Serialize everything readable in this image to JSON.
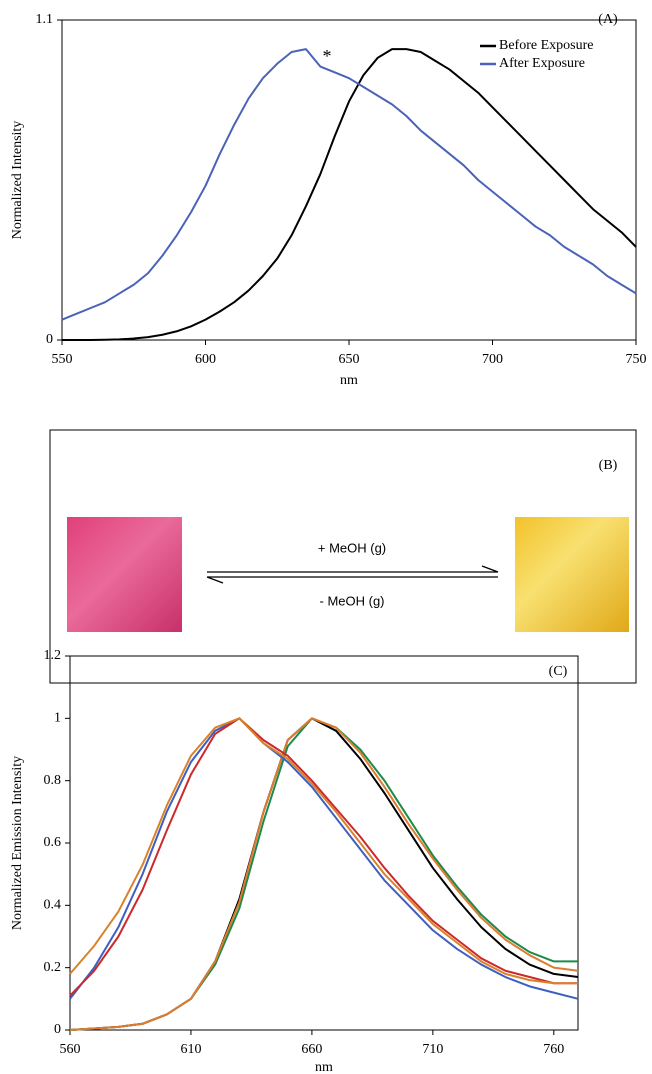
{
  "chart_data": [
    {
      "type": "line",
      "label": "(A)",
      "x_label": "nm",
      "y_label": "Normalized Intensity",
      "annotation": "*",
      "x": [
        550,
        555,
        560,
        565,
        570,
        575,
        580,
        585,
        590,
        595,
        600,
        605,
        610,
        615,
        620,
        625,
        630,
        635,
        640,
        645,
        650,
        655,
        660,
        665,
        670,
        675,
        680,
        685,
        690,
        695,
        700,
        705,
        710,
        715,
        720,
        725,
        730,
        735,
        740,
        745,
        750
      ],
      "xlim": [
        550,
        750
      ],
      "xticks": [
        550,
        600,
        650,
        700,
        750
      ],
      "ylim": [
        0,
        1.1
      ],
      "yticks": [
        0,
        1.1
      ],
      "legend": "upper right",
      "series": [
        {
          "name": "Before Exposure",
          "color": "#000000",
          "values": [
            0,
            0,
            0,
            0.001,
            0.002,
            0.005,
            0.01,
            0.018,
            0.03,
            0.047,
            0.07,
            0.098,
            0.13,
            0.17,
            0.22,
            0.28,
            0.36,
            0.46,
            0.57,
            0.7,
            0.82,
            0.91,
            0.97,
            1.0,
            1.0,
            0.99,
            0.96,
            0.93,
            0.89,
            0.85,
            0.8,
            0.75,
            0.7,
            0.65,
            0.6,
            0.55,
            0.5,
            0.45,
            0.41,
            0.37,
            0.32
          ]
        },
        {
          "name": "After Exposure",
          "color": "#4a63b8",
          "values": [
            0.07,
            0.09,
            0.11,
            0.13,
            0.16,
            0.19,
            0.23,
            0.29,
            0.36,
            0.44,
            0.53,
            0.64,
            0.74,
            0.83,
            0.9,
            0.95,
            0.99,
            1.0,
            0.94,
            0.92,
            0.9,
            0.87,
            0.84,
            0.81,
            0.77,
            0.72,
            0.68,
            0.64,
            0.6,
            0.55,
            0.51,
            0.47,
            0.43,
            0.39,
            0.36,
            0.32,
            0.29,
            0.26,
            0.22,
            0.19,
            0.16
          ]
        }
      ]
    },
    {
      "type": "line",
      "label": "(C)",
      "x_label": "nm",
      "y_label": "Normalized Emission Intensity",
      "x": [
        560,
        570,
        580,
        590,
        600,
        610,
        620,
        630,
        640,
        650,
        660,
        670,
        680,
        690,
        700,
        710,
        720,
        730,
        740,
        750,
        760,
        770
      ],
      "xlim": [
        560,
        770
      ],
      "xticks": [
        560,
        610,
        660,
        710,
        760
      ],
      "ylim": [
        0,
        1.2
      ],
      "yticks": [
        0,
        0.2,
        0.4,
        0.6,
        0.8,
        1,
        1.2
      ],
      "series": [
        {
          "color": "#000000",
          "values": [
            0,
            0.005,
            0.01,
            0.02,
            0.05,
            0.1,
            0.22,
            0.42,
            0.7,
            0.93,
            1.0,
            0.96,
            0.87,
            0.76,
            0.64,
            0.52,
            0.42,
            0.33,
            0.26,
            0.21,
            0.18,
            0.17
          ]
        },
        {
          "color": "#1e8a4a",
          "values": [
            0,
            0.005,
            0.01,
            0.02,
            0.05,
            0.1,
            0.21,
            0.39,
            0.67,
            0.91,
            1.0,
            0.97,
            0.9,
            0.8,
            0.68,
            0.56,
            0.46,
            0.37,
            0.3,
            0.25,
            0.22,
            0.22
          ]
        },
        {
          "color": "#e07a2e",
          "values": [
            0,
            0.005,
            0.01,
            0.02,
            0.05,
            0.1,
            0.22,
            0.41,
            0.7,
            0.93,
            1.0,
            0.97,
            0.89,
            0.78,
            0.66,
            0.55,
            0.45,
            0.36,
            0.29,
            0.24,
            0.2,
            0.19
          ]
        },
        {
          "color": "#3f5fc0",
          "values": [
            0.1,
            0.2,
            0.33,
            0.5,
            0.7,
            0.86,
            0.96,
            1.0,
            0.92,
            0.86,
            0.78,
            0.68,
            0.58,
            0.48,
            0.4,
            0.32,
            0.26,
            0.21,
            0.17,
            0.14,
            0.12,
            0.1
          ]
        },
        {
          "color": "#cc2a2a",
          "values": [
            0.11,
            0.19,
            0.3,
            0.45,
            0.64,
            0.82,
            0.95,
            1.0,
            0.93,
            0.88,
            0.8,
            0.71,
            0.62,
            0.52,
            0.43,
            0.35,
            0.29,
            0.23,
            0.19,
            0.17,
            0.15,
            0.15
          ]
        },
        {
          "color": "#d9822b",
          "values": [
            0.18,
            0.27,
            0.38,
            0.53,
            0.72,
            0.88,
            0.97,
            1.0,
            0.92,
            0.87,
            0.79,
            0.7,
            0.6,
            0.5,
            0.42,
            0.34,
            0.28,
            0.22,
            0.18,
            0.16,
            0.15,
            0.15
          ]
        }
      ]
    }
  ],
  "diagram": {
    "label": "(B)",
    "forward": "+ MeOH (g)",
    "reverse": "- MeOH (g)"
  }
}
